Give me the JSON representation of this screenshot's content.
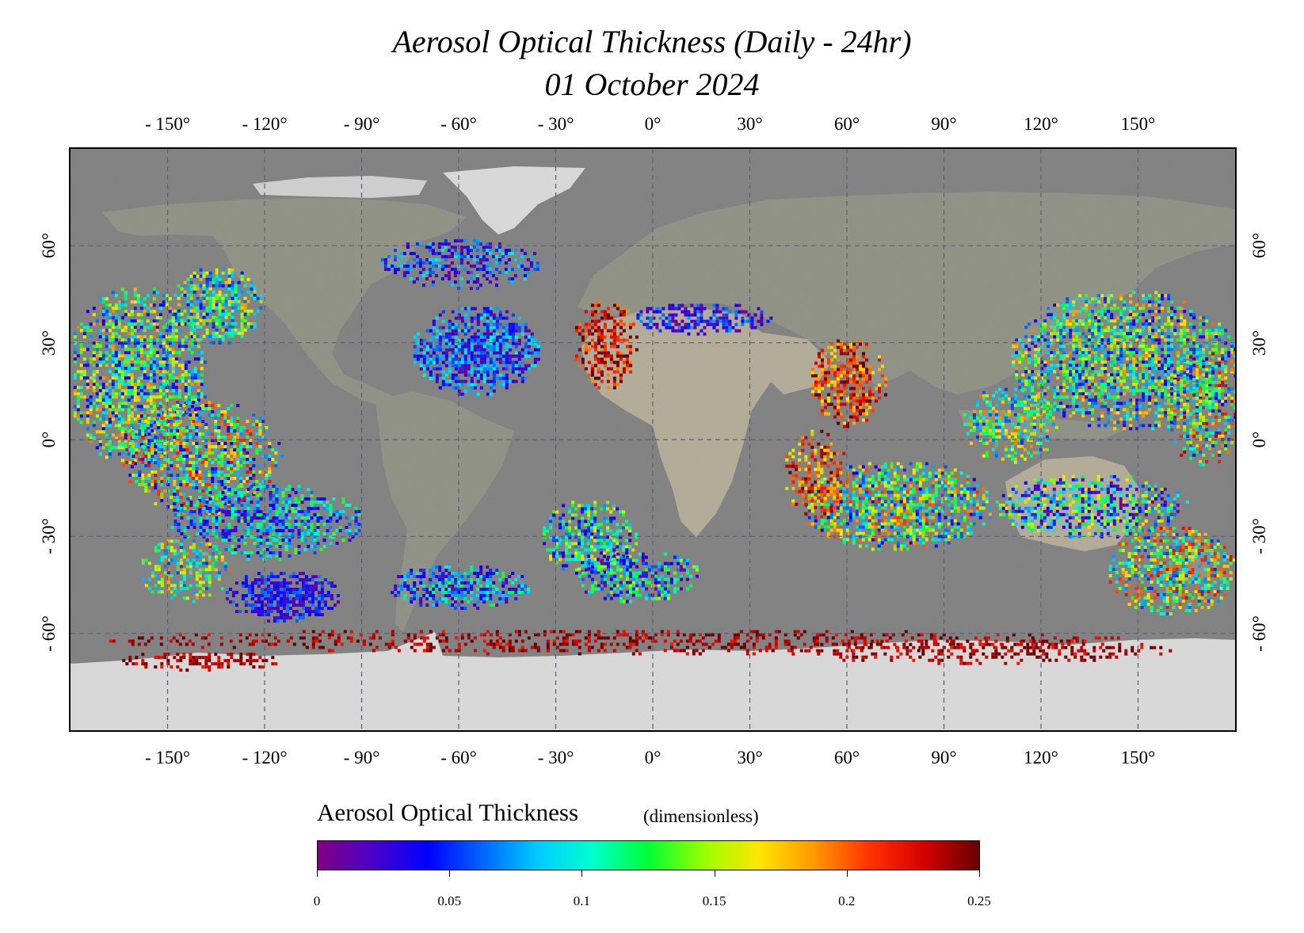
{
  "title": {
    "line1": "Aerosol Optical Thickness (Daily - 24hr)",
    "line2": "01 October 2024"
  },
  "map": {
    "projection": "equirectangular",
    "lon_range": [
      -180,
      180
    ],
    "lat_range": [
      -90,
      90
    ],
    "gridlines": "dashed",
    "lon_ticks": [
      {
        "value": -150,
        "label": "- 150°"
      },
      {
        "value": -120,
        "label": "- 120°"
      },
      {
        "value": -90,
        "label": "- 90°"
      },
      {
        "value": -60,
        "label": "- 60°"
      },
      {
        "value": -30,
        "label": "- 30°"
      },
      {
        "value": 0,
        "label": "0°"
      },
      {
        "value": 30,
        "label": "30°"
      },
      {
        "value": 60,
        "label": "60°"
      },
      {
        "value": 90,
        "label": "90°"
      },
      {
        "value": 120,
        "label": "120°"
      },
      {
        "value": 150,
        "label": "150°"
      }
    ],
    "lat_ticks": [
      {
        "value": 60,
        "label": "60°"
      },
      {
        "value": 30,
        "label": "30°"
      },
      {
        "value": 0,
        "label": "0°"
      },
      {
        "value": -30,
        "label": "- 30°"
      },
      {
        "value": -60,
        "label": "- 60°"
      }
    ],
    "colors": {
      "ocean": "#808080",
      "land": "#8e9184",
      "desert": "#b3ab96",
      "ice": "#d9d9d9",
      "grid": "#5d5d78"
    }
  },
  "colorbar": {
    "title": "Aerosol Optical Thickness",
    "units": "(dimensionless)",
    "min": 0,
    "max": 0.25,
    "ticks": [
      {
        "value": 0,
        "label": "0"
      },
      {
        "value": 0.05,
        "label": "0.05"
      },
      {
        "value": 0.1,
        "label": "0.1"
      },
      {
        "value": 0.15,
        "label": "0.15"
      },
      {
        "value": 0.2,
        "label": "0.2"
      },
      {
        "value": 0.25,
        "label": "0.25"
      }
    ],
    "colors": [
      "#800080",
      "#4b00c8",
      "#0000ff",
      "#0066ff",
      "#00ccff",
      "#00ffcc",
      "#00ff33",
      "#99ff00",
      "#ffe600",
      "#ff9900",
      "#ff3300",
      "#d40000",
      "#660000"
    ]
  }
}
